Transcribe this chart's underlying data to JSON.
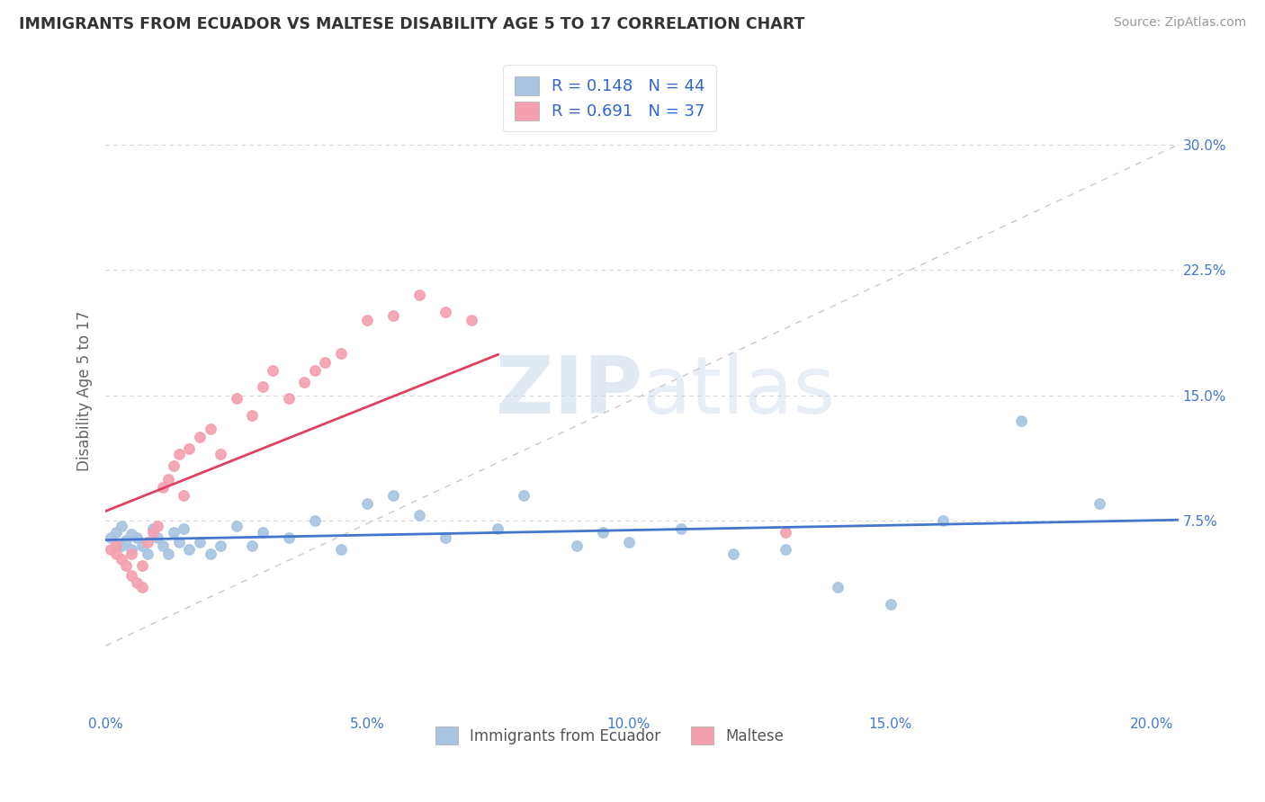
{
  "title": "IMMIGRANTS FROM ECUADOR VS MALTESE DISABILITY AGE 5 TO 17 CORRELATION CHART",
  "source": "Source: ZipAtlas.com",
  "ylabel": "Disability Age 5 to 17",
  "xlim": [
    0.0,
    0.205
  ],
  "ylim": [
    -0.04,
    0.345
  ],
  "xticks": [
    0.0,
    0.05,
    0.1,
    0.15,
    0.2
  ],
  "xtick_labels": [
    "0.0%",
    "5.0%",
    "10.0%",
    "15.0%",
    "20.0%"
  ],
  "ytick_labels": [
    "7.5%",
    "15.0%",
    "22.5%",
    "30.0%"
  ],
  "yticks": [
    0.075,
    0.15,
    0.225,
    0.3
  ],
  "background_color": "#ffffff",
  "grid_color": "#cccccc",
  "series1_color": "#a8c4e0",
  "series2_color": "#f4a0b0",
  "series1_label": "Immigrants from Ecuador",
  "series2_label": "Maltese",
  "series1_R": "0.148",
  "series1_N": "44",
  "series2_R": "0.691",
  "series2_N": "37",
  "legend_R_color": "#3366cc",
  "line1_color": "#4477cc",
  "line2_color": "#e04060",
  "ref_line_color": "#c8b8b8",
  "series1_x": [
    0.001,
    0.002,
    0.003,
    0.003,
    0.004,
    0.005,
    0.005,
    0.006,
    0.007,
    0.008,
    0.009,
    0.01,
    0.011,
    0.012,
    0.013,
    0.014,
    0.015,
    0.016,
    0.018,
    0.02,
    0.022,
    0.025,
    0.028,
    0.03,
    0.035,
    0.04,
    0.045,
    0.05,
    0.055,
    0.06,
    0.065,
    0.075,
    0.08,
    0.09,
    0.095,
    0.1,
    0.11,
    0.12,
    0.13,
    0.14,
    0.15,
    0.16,
    0.175,
    0.19
  ],
  "series1_y": [
    0.065,
    0.068,
    0.06,
    0.072,
    0.063,
    0.067,
    0.058,
    0.065,
    0.06,
    0.055,
    0.07,
    0.065,
    0.06,
    0.055,
    0.068,
    0.062,
    0.07,
    0.058,
    0.062,
    0.055,
    0.06,
    0.072,
    0.06,
    0.068,
    0.065,
    0.075,
    0.058,
    0.085,
    0.09,
    0.078,
    0.065,
    0.07,
    0.09,
    0.06,
    0.068,
    0.062,
    0.07,
    0.055,
    0.058,
    0.035,
    0.025,
    0.075,
    0.135,
    0.085
  ],
  "series2_x": [
    0.001,
    0.002,
    0.002,
    0.003,
    0.004,
    0.005,
    0.005,
    0.006,
    0.007,
    0.007,
    0.008,
    0.009,
    0.01,
    0.011,
    0.012,
    0.013,
    0.014,
    0.015,
    0.016,
    0.018,
    0.02,
    0.022,
    0.025,
    0.028,
    0.03,
    0.032,
    0.035,
    0.038,
    0.04,
    0.042,
    0.045,
    0.05,
    0.055,
    0.06,
    0.065,
    0.07,
    0.13
  ],
  "series2_y": [
    0.058,
    0.06,
    0.055,
    0.052,
    0.048,
    0.055,
    0.042,
    0.038,
    0.035,
    0.048,
    0.062,
    0.068,
    0.072,
    0.095,
    0.1,
    0.108,
    0.115,
    0.09,
    0.118,
    0.125,
    0.13,
    0.115,
    0.148,
    0.138,
    0.155,
    0.165,
    0.148,
    0.158,
    0.165,
    0.17,
    0.175,
    0.195,
    0.198,
    0.21,
    0.2,
    0.195,
    0.068
  ]
}
